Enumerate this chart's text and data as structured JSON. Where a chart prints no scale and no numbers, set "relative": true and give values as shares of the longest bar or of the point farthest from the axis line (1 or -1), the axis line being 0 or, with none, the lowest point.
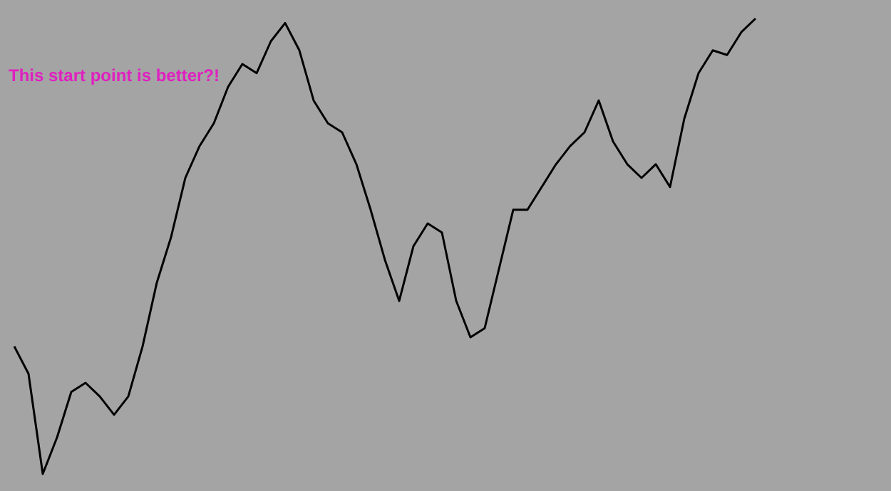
{
  "chart_data": {
    "type": "line",
    "relative": true,
    "marker": "none",
    "categories": [
      null,
      null,
      null,
      null,
      null,
      null,
      null,
      null,
      null,
      null,
      null,
      null,
      null,
      null,
      null,
      null,
      null,
      null,
      null,
      null,
      null,
      null,
      null,
      null,
      null,
      null,
      null,
      null,
      null,
      null,
      null,
      null,
      null,
      null,
      null,
      null,
      null,
      null,
      null,
      null,
      null,
      null,
      null,
      null,
      null,
      null,
      null,
      null,
      null,
      null,
      null,
      null,
      null,
      null,
      null,
      null,
      null,
      null,
      null,
      null,
      null
    ],
    "series": [
      {
        "color": "#000000",
        "values": [
          0.28,
          0.22,
          0,
          0.08,
          0.18,
          0.2,
          0.17,
          0.13,
          0.17,
          0.28,
          0.42,
          0.52,
          0.65,
          0.72,
          0.77,
          0.85,
          0.9,
          0.88,
          0.95,
          0.99,
          0.93,
          0.82,
          0.77,
          0.75,
          0.68,
          0.58,
          0.47,
          0.38,
          0.5,
          0.55,
          0.53,
          0.38,
          0.3,
          0.32,
          0.45,
          0.58,
          0.58,
          0.63,
          0.68,
          0.72,
          0.75,
          0.82,
          0.73,
          0.68,
          0.65,
          0.68,
          0.63,
          0.78,
          0.88,
          0.93,
          0.92,
          0.97,
          1,
          null,
          null,
          null,
          null,
          null,
          null,
          null,
          null
        ]
      }
    ],
    "annotations": [
      "This start point is better?!"
    ]
  }
}
